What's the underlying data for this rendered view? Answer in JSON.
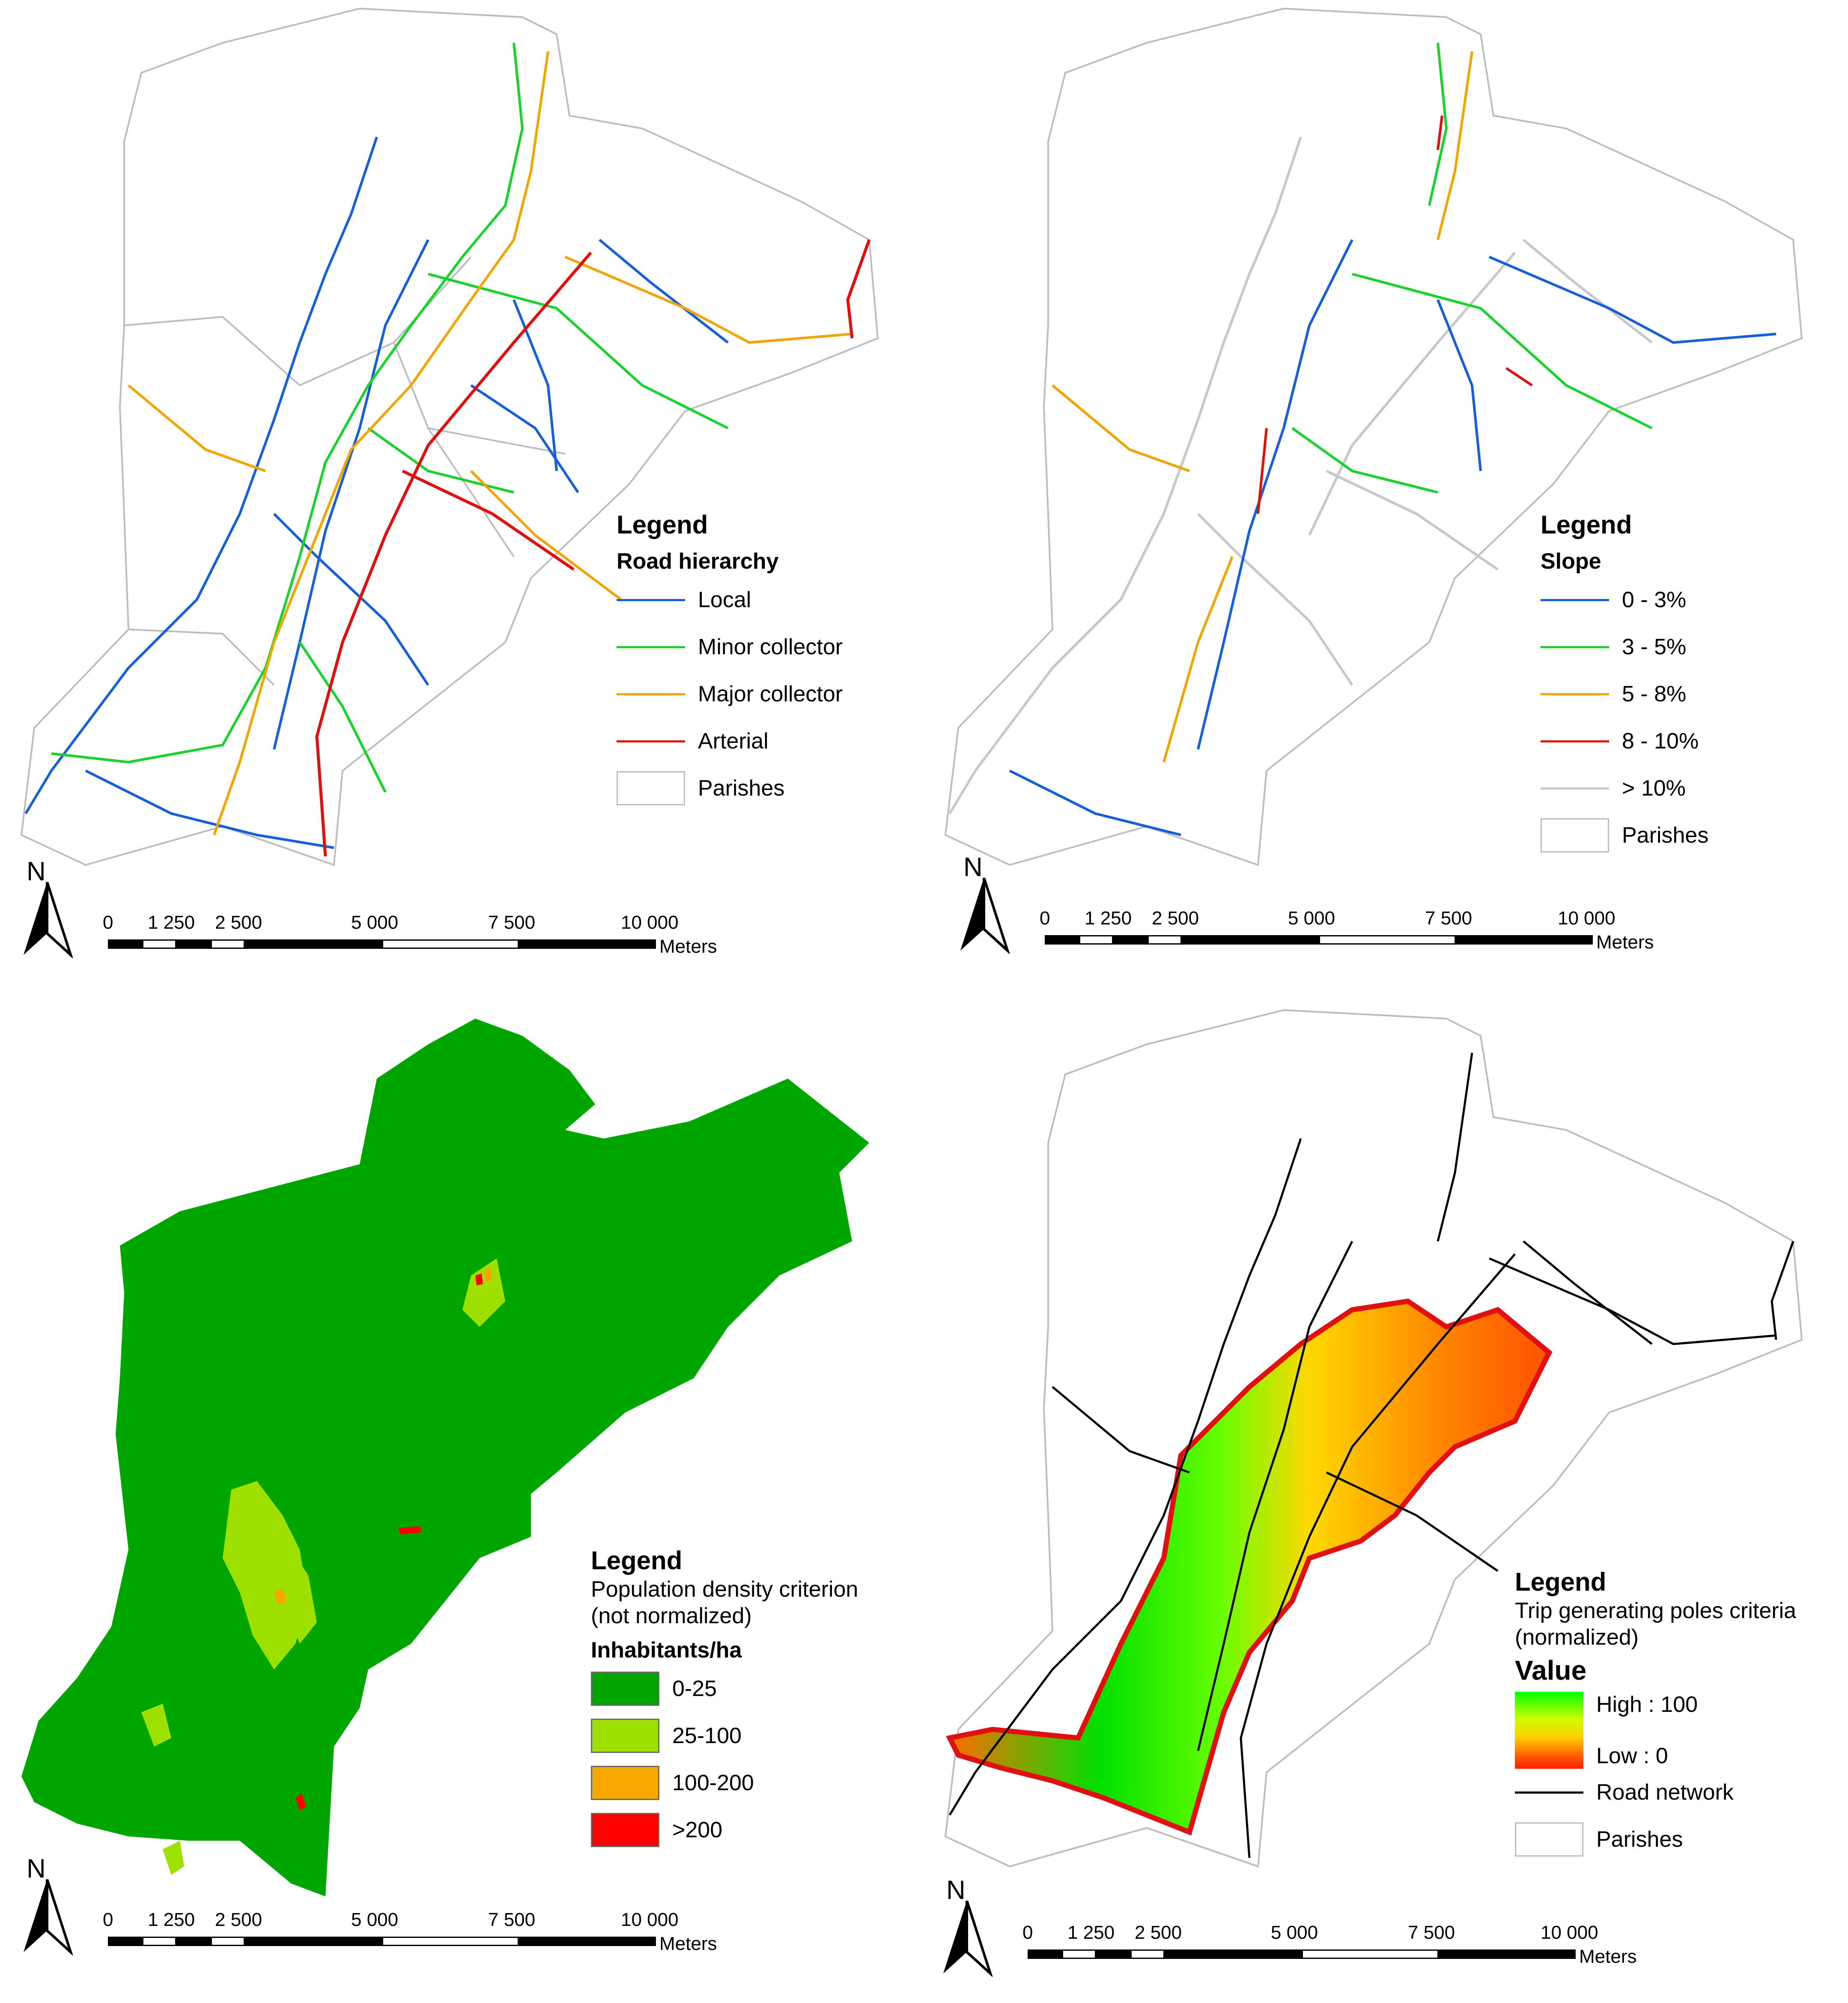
{
  "panels": [
    {
      "legend": {
        "title": "Legend",
        "heading": "Road hierarchy",
        "items": [
          {
            "label": "Local",
            "color": "#1560d6"
          },
          {
            "label": "Minor collector",
            "color": "#1bd12c"
          },
          {
            "label": "Major collector",
            "color": "#f0a500"
          },
          {
            "label": "Arterial",
            "color": "#e01010"
          },
          {
            "label": "Parishes",
            "color": "#bdbdbd"
          }
        ]
      }
    },
    {
      "legend": {
        "title": "Legend",
        "heading": "Slope",
        "items": [
          {
            "label": "0 - 3%",
            "color": "#1560d6"
          },
          {
            "label": "3 - 5%",
            "color": "#1bd12c"
          },
          {
            "label": "5 - 8%",
            "color": "#f0a500"
          },
          {
            "label": "8 - 10%",
            "color": "#e01010"
          },
          {
            "label": "> 10%",
            "color": "#c8c8c8"
          },
          {
            "label": "Parishes",
            "color": "#bdbdbd"
          }
        ]
      }
    },
    {
      "legend": {
        "title": "Legend",
        "subtitle_line1": "Population density criterion",
        "subtitle_line2": "(not normalized)",
        "heading": "Inhabitants/ha",
        "items": [
          {
            "label": "0-25",
            "color": "#00a600"
          },
          {
            "label": "25-100",
            "color": "#9ee000"
          },
          {
            "label": "100-200",
            "color": "#f5a800"
          },
          {
            "label": ">200",
            "color": "#ff0000"
          }
        ]
      }
    },
    {
      "legend": {
        "title": "Legend",
        "subtitle_line1": "Trip generating poles criteria",
        "subtitle_line2": "(normalized)",
        "value_heading": "Value",
        "high_label": "High : 100",
        "low_label": "Low : 0",
        "items": [
          {
            "label": "Road network",
            "color": "#000000"
          },
          {
            "label": "Parishes",
            "color": "#bdbdbd"
          }
        ]
      }
    }
  ],
  "north_label": "N",
  "scale": {
    "ticks": [
      "0",
      "1 250",
      "2 500",
      "5 000",
      "7 500",
      "10 000"
    ],
    "unit": "Meters"
  }
}
